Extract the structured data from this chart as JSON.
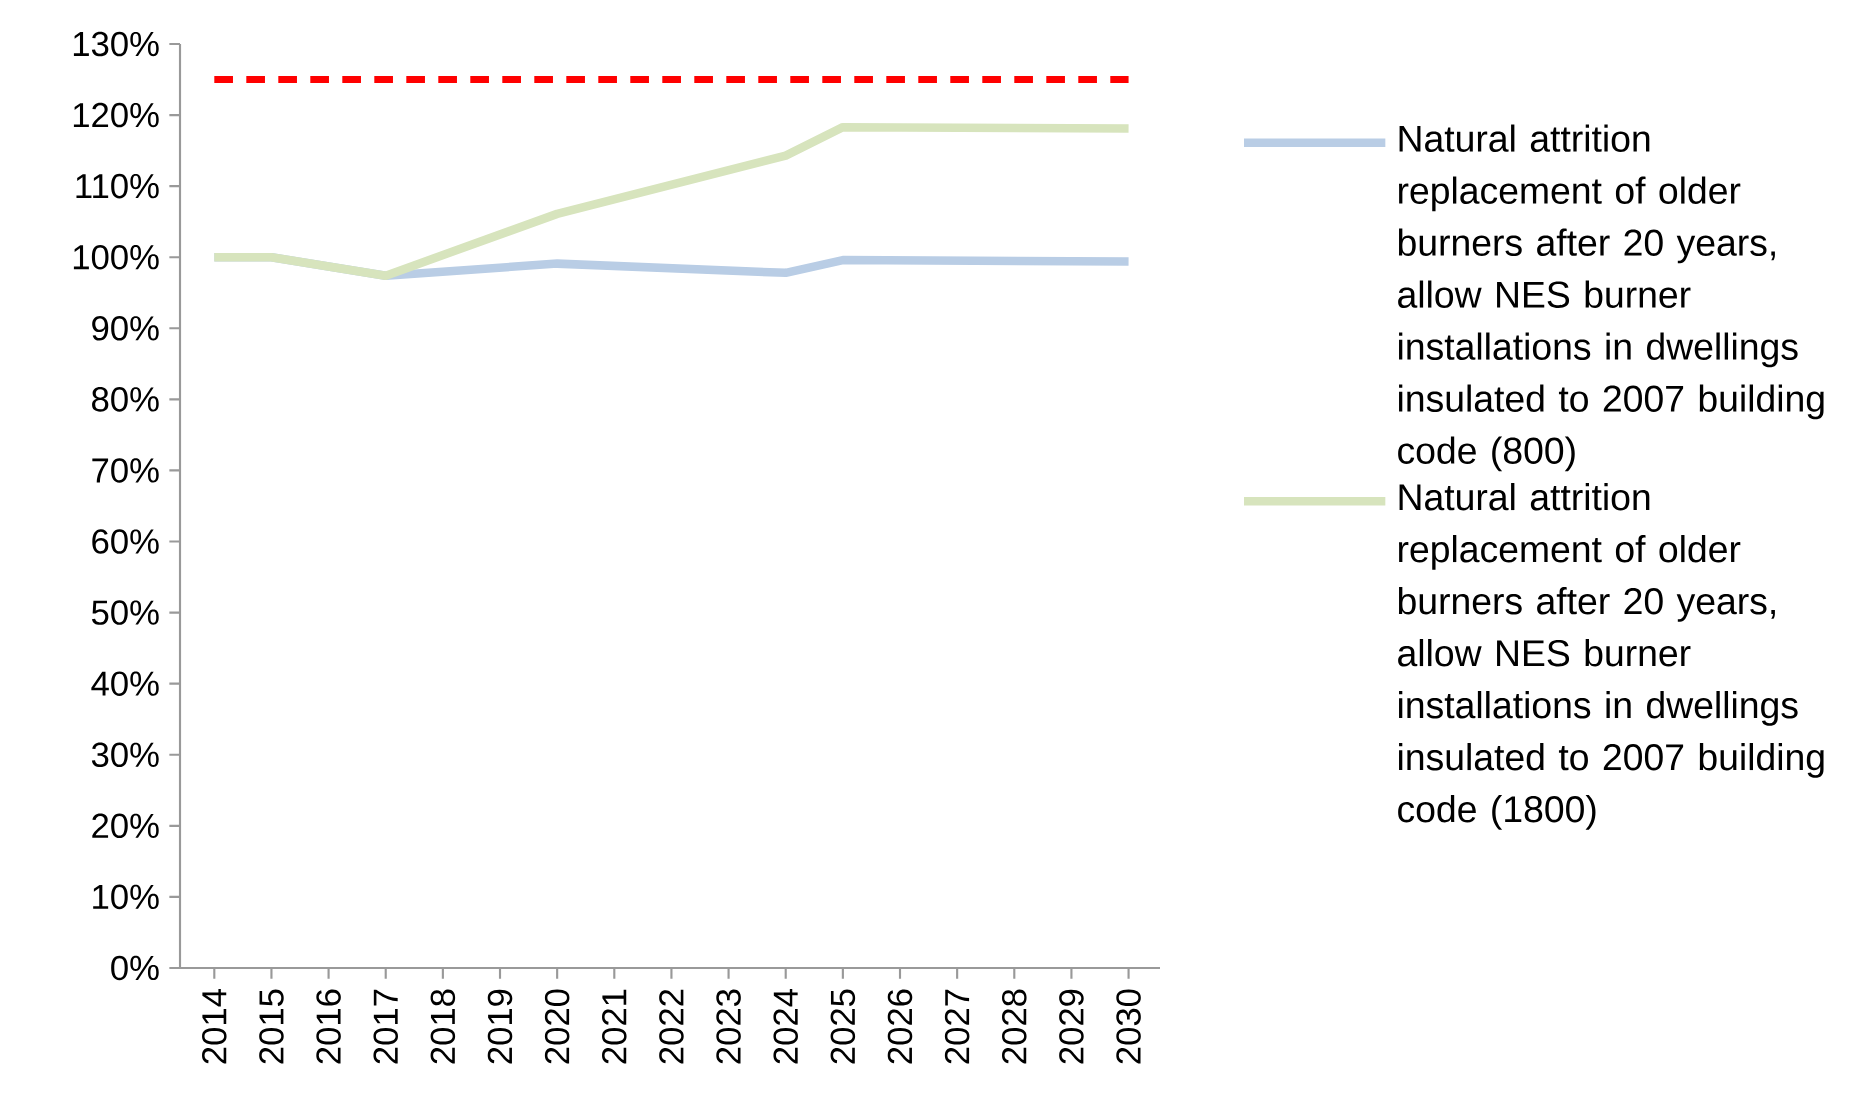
{
  "chart_data": {
    "type": "line",
    "categories": [
      "2014",
      "2015",
      "2016",
      "2017",
      "2018",
      "2019",
      "2020",
      "2021",
      "2022",
      "2023",
      "2024",
      "2025",
      "2026",
      "2027",
      "2028",
      "2029",
      "2030"
    ],
    "series": [
      {
        "name": "Natural attrition replacement of older burners after 20 years, allow NES burner installations in dwellings insulated to 2007 building code (800)",
        "color": "#b9cde5",
        "values": [
          100,
          100,
          null,
          97.4,
          null,
          null,
          99.1,
          null,
          null,
          null,
          97.8,
          99.6,
          null,
          null,
          null,
          null,
          99.4
        ]
      },
      {
        "name": "Natural attrition replacement of older burners after 20 years, allow NES burner installations in dwellings insulated to 2007 building code (1800)",
        "color": "#d7e4bd",
        "values": [
          100,
          100,
          null,
          97.4,
          null,
          null,
          106.1,
          null,
          null,
          null,
          114.3,
          118.3,
          null,
          null,
          null,
          null,
          118.1
        ]
      }
    ],
    "ylim": [
      0,
      130
    ],
    "yticks": [
      {
        "value": 0,
        "label": "0%"
      },
      {
        "value": 10,
        "label": "10%"
      },
      {
        "value": 20,
        "label": "20%"
      },
      {
        "value": 30,
        "label": "30%"
      },
      {
        "value": 40,
        "label": "40%"
      },
      {
        "value": 50,
        "label": "50%"
      },
      {
        "value": 60,
        "label": "60%"
      },
      {
        "value": 70,
        "label": "70%"
      },
      {
        "value": 80,
        "label": "80%"
      },
      {
        "value": 90,
        "label": "90%"
      },
      {
        "value": 100,
        "label": "100%"
      },
      {
        "value": 110,
        "label": "110%"
      },
      {
        "value": 120,
        "label": "120%"
      },
      {
        "value": 130,
        "label": "130%"
      }
    ],
    "ref_lines": [
      {
        "axis": "y",
        "value": 125,
        "color": "#ff0000",
        "line_style": "dashed"
      }
    ],
    "legend": "right",
    "grid": false,
    "marker": "none",
    "line_style": "solid"
  }
}
